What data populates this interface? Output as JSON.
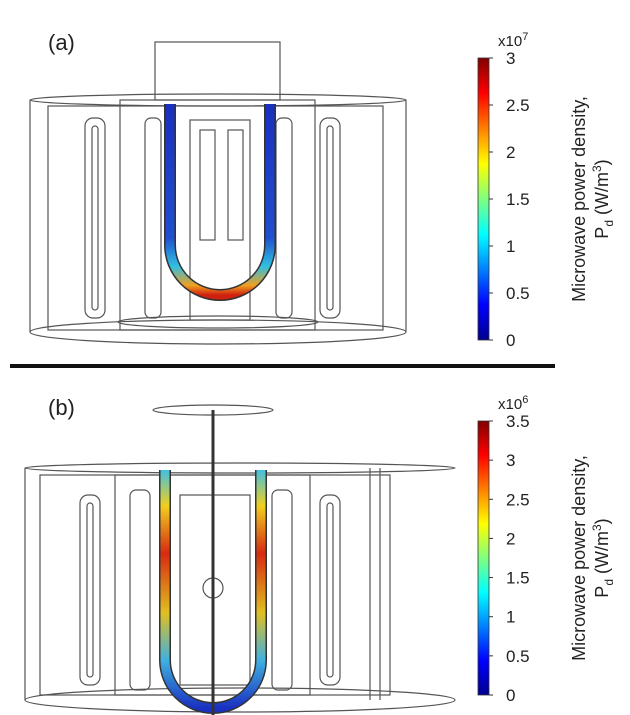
{
  "panels": [
    {
      "label": "(a)",
      "colorbar": {
        "multiplier": "x10",
        "multiplier_exponent": "7",
        "clim": [
          0,
          3
        ],
        "ticks": [
          0,
          0.5,
          1,
          1.5,
          2,
          2.5,
          3
        ],
        "title_line1": "Microwave power density,",
        "symbol": "P",
        "subscript": "d",
        "unit": "(W/m",
        "unit_exponent": "3",
        "unit_close": ")"
      }
    },
    {
      "label": "(b)",
      "colorbar": {
        "multiplier": "x10",
        "multiplier_exponent": "6",
        "clim": [
          0,
          3.5
        ],
        "ticks": [
          0,
          0.5,
          1,
          1.5,
          2,
          2.5,
          3,
          3.5
        ],
        "title_line1": "Microwave power density,",
        "symbol": "P",
        "subscript": "d",
        "unit": "(W/m",
        "unit_exponent": "3",
        "unit_close": ")"
      }
    }
  ]
}
